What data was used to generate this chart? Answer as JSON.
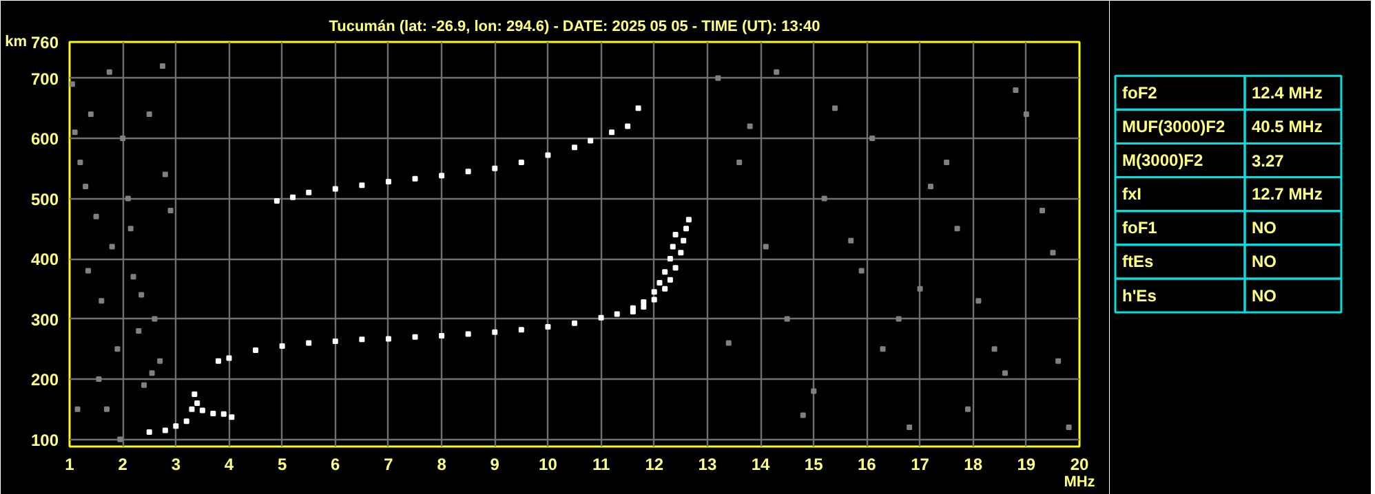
{
  "chart_data": [
    {
      "type": "scatter",
      "title": "Tucumán (lat: -26.9, lon: 294.6) - DATE: 2025 05 05 - TIME (UT): 13:40",
      "xlabel": "MHz",
      "ylabel": "km",
      "marker": "square",
      "grid": true,
      "xlim": [
        1,
        20
      ],
      "ylim": [
        88,
        760
      ],
      "xticks": [
        1,
        2,
        3,
        4,
        5,
        6,
        7,
        8,
        9,
        10,
        11,
        12,
        13,
        14,
        15,
        16,
        17,
        18,
        19,
        20
      ],
      "yticks": [
        100,
        200,
        300,
        400,
        500,
        600,
        700,
        760
      ],
      "series": [
        {
          "color": "#808080",
          "x": [
            1.05,
            1.1,
            1.2,
            1.3,
            1.4,
            1.5,
            1.6,
            1.7,
            1.8,
            1.9,
            2.0,
            2.1,
            2.2,
            2.3,
            2.4,
            2.5,
            2.6,
            2.7,
            2.8,
            1.15,
            1.35,
            1.55,
            1.75,
            1.95,
            2.15,
            2.35,
            2.55,
            2.75,
            2.9,
            13.2,
            13.6,
            14.1,
            14.5,
            15.0,
            15.4,
            15.9,
            16.3,
            16.8,
            17.2,
            17.7,
            18.1,
            18.6,
            19.0,
            19.5,
            19.8,
            13.4,
            14.3,
            15.2,
            16.1,
            17.0,
            17.9,
            18.8,
            19.6,
            13.8,
            14.8,
            15.7,
            16.6,
            17.5,
            18.4,
            19.3
          ],
          "values": [
            690,
            610,
            560,
            520,
            640,
            470,
            330,
            150,
            420,
            250,
            600,
            500,
            370,
            280,
            190,
            640,
            300,
            230,
            540,
            150,
            380,
            200,
            710,
            100,
            450,
            340,
            210,
            720,
            480,
            700,
            560,
            420,
            300,
            180,
            650,
            380,
            250,
            120,
            520,
            450,
            330,
            210,
            640,
            410,
            120,
            260,
            710,
            500,
            600,
            350,
            150,
            680,
            230,
            620,
            140,
            430,
            300,
            560,
            250,
            480
          ]
        },
        {
          "color": "#ffffff",
          "x": [
            2.5,
            2.8,
            3.0,
            3.2,
            3.3,
            3.35,
            3.4,
            3.5,
            3.7,
            3.9,
            4.05
          ],
          "values": [
            112,
            115,
            122,
            130,
            150,
            175,
            160,
            148,
            143,
            142,
            137
          ]
        },
        {
          "color": "#ffffff",
          "x": [
            3.8,
            4.0,
            4.5,
            5.0,
            5.5,
            6.0,
            6.5,
            7.0,
            7.5,
            8.0,
            8.5,
            9.0,
            9.5,
            10.0,
            10.5,
            11.0,
            11.3,
            11.6,
            11.8,
            12.0,
            12.1,
            12.2,
            12.3,
            12.35,
            12.4
          ],
          "values": [
            230,
            235,
            248,
            255,
            260,
            263,
            266,
            267,
            270,
            272,
            275,
            278,
            282,
            287,
            293,
            302,
            308,
            318,
            328,
            345,
            360,
            378,
            400,
            420,
            440
          ]
        },
        {
          "color": "#ffffff",
          "x": [
            11.6,
            11.8,
            12.0,
            12.2,
            12.3,
            12.4,
            12.5,
            12.55,
            12.6,
            12.65
          ],
          "values": [
            312,
            320,
            332,
            350,
            365,
            385,
            410,
            430,
            450,
            465
          ]
        },
        {
          "color": "#ffffff",
          "x": [
            4.9,
            5.2,
            5.5,
            6.0,
            6.5,
            7.0,
            7.5,
            8.0,
            8.5,
            9.0,
            9.5,
            10.0,
            10.5,
            10.8,
            11.2,
            11.5,
            11.7
          ],
          "values": [
            496,
            502,
            510,
            516,
            522,
            528,
            533,
            538,
            545,
            550,
            560,
            572,
            585,
            596,
            610,
            620,
            650
          ]
        }
      ]
    },
    {
      "type": "other",
      "annotations": [
        "foF2",
        "12.4 MHz",
        "MUF(3000)F2",
        "40.5 MHz",
        "M(3000)F2",
        "3.27",
        "fxI",
        "12.7 MHz",
        "foF1",
        "NO",
        "ftEs",
        "NO",
        "h'Es",
        "NO"
      ]
    }
  ]
}
